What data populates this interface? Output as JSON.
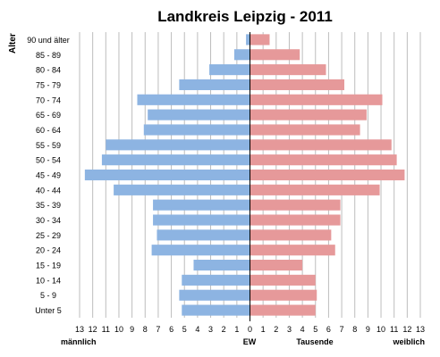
{
  "chart_data": {
    "type": "bar",
    "title": "Landkreis Leipzig - 2011",
    "ylabel": "Alter",
    "xlabel": "Tausende",
    "unit_label": "EW",
    "left_label": "männlich",
    "right_label": "weiblich",
    "xlim": [
      -13,
      13
    ],
    "x_ticks": [
      -13,
      -12,
      -11,
      -10,
      -9,
      -8,
      -7,
      -6,
      -5,
      -4,
      -3,
      -2,
      -1,
      0,
      1,
      2,
      3,
      4,
      5,
      6,
      7,
      8,
      9,
      10,
      11,
      12,
      13
    ],
    "x_tick_labels": [
      "13",
      "12",
      "11",
      "10",
      "9",
      "8",
      "7",
      "6",
      "5",
      "4",
      "3",
      "2",
      "1",
      "0",
      "1",
      "2",
      "3",
      "4",
      "5",
      "6",
      "7",
      "8",
      "9",
      "10",
      "11",
      "12",
      "13"
    ],
    "grid": true,
    "categories": [
      "90 und älter",
      "85 - 89",
      "80 - 84",
      "75 - 79",
      "70 - 74",
      "65 - 69",
      "60 - 64",
      "55 - 59",
      "50 - 54",
      "45 - 49",
      "40 - 44",
      "35 - 39",
      "30 - 34",
      "25 - 29",
      "20 - 24",
      "15 - 19",
      "10 - 14",
      "5 - 9",
      "Unter 5"
    ],
    "series": [
      {
        "name": "männlich",
        "color": "#8db4e2",
        "values": [
          0.3,
          1.2,
          3.1,
          5.4,
          8.6,
          7.8,
          8.1,
          11.0,
          11.3,
          12.6,
          10.4,
          7.4,
          7.4,
          7.1,
          7.5,
          4.3,
          5.2,
          5.4,
          5.2
        ]
      },
      {
        "name": "weiblich",
        "color": "#e6999a",
        "values": [
          1.5,
          3.8,
          5.8,
          7.2,
          10.1,
          8.9,
          8.4,
          10.8,
          11.2,
          11.8,
          9.9,
          6.9,
          6.9,
          6.2,
          6.5,
          4.0,
          5.0,
          5.1,
          5.0
        ]
      }
    ]
  }
}
